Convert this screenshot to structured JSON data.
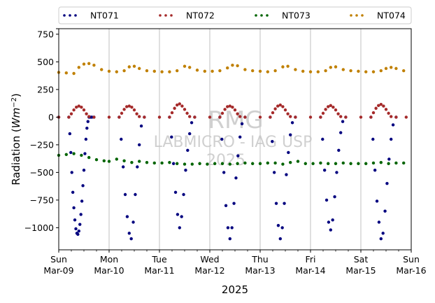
{
  "chart_data": {
    "type": "scatter",
    "title": "",
    "xlabel": "2025",
    "ylabel_main": "Radiation (",
    "ylabel_unit": "Wm",
    "ylabel_exp": "−2",
    "ylabel_close": ")",
    "ylim": [
      -1200,
      800
    ],
    "xlim": [
      0,
      7
    ],
    "grid": "vertical",
    "legend_position": "top",
    "yticks": [
      800,
      750,
      500,
      250,
      0,
      -250,
      -500,
      -750,
      -1000
    ],
    "ytick_labels": [
      "",
      "750",
      "500",
      "250",
      "0",
      "−250",
      "−500",
      "−750",
      "−1000"
    ],
    "xticks": [
      {
        "x": 0,
        "day": "Sun",
        "date": "Mar-09"
      },
      {
        "x": 1,
        "day": "Mon",
        "date": "Mar-10"
      },
      {
        "x": 2,
        "day": "Tue",
        "date": "Mar-11"
      },
      {
        "x": 3,
        "day": "Wed",
        "date": "Mar-12"
      },
      {
        "x": 4,
        "day": "Thu",
        "date": "Mar-13"
      },
      {
        "x": 5,
        "day": "Fri",
        "date": "Mar-14"
      },
      {
        "x": 6,
        "day": "Sat",
        "date": "Mar-15"
      },
      {
        "x": 7,
        "day": "Sun",
        "date": "Mar-16"
      }
    ],
    "watermark": [
      "RMG",
      "LABMICRO - IAG USP",
      "2025"
    ],
    "series": [
      {
        "name": "NT071",
        "color": "#00007f",
        "x": [
          0.0,
          0.2,
          0.22,
          0.24,
          0.26,
          0.28,
          0.3,
          0.32,
          0.34,
          0.36,
          0.38,
          0.4,
          0.42,
          0.44,
          0.46,
          0.48,
          0.5,
          0.52,
          0.54,
          0.56,
          0.58,
          0.6,
          0.62,
          0.64,
          0.66,
          0.7,
          1.2,
          1.24,
          1.28,
          1.32,
          1.36,
          1.4,
          1.44,
          1.48,
          1.52,
          1.56,
          1.6,
          1.64,
          1.7,
          2.2,
          2.24,
          2.28,
          2.32,
          2.36,
          2.4,
          2.44,
          2.48,
          2.52,
          2.56,
          2.6,
          2.64,
          2.7,
          3.2,
          3.24,
          3.28,
          3.32,
          3.36,
          3.4,
          3.44,
          3.48,
          3.52,
          3.56,
          3.6,
          3.64,
          3.7,
          4.2,
          4.24,
          4.28,
          4.32,
          4.36,
          4.4,
          4.44,
          4.48,
          4.52,
          4.56,
          4.6,
          4.64,
          4.7,
          5.2,
          5.24,
          5.28,
          5.32,
          5.36,
          5.4,
          5.44,
          5.48,
          5.52,
          5.56,
          5.6,
          5.64,
          5.7,
          6.2,
          6.24,
          6.28,
          6.32,
          6.36,
          6.4,
          6.44,
          6.48,
          6.52,
          6.56,
          6.6,
          6.64,
          6.7
        ],
        "y": [
          0,
          0,
          -150,
          -320,
          -500,
          -680,
          -820,
          -930,
          -1010,
          -1050,
          -1060,
          -1030,
          -970,
          -880,
          -760,
          -620,
          -480,
          -330,
          -200,
          -100,
          -40,
          0,
          0,
          0,
          0,
          0,
          0,
          -200,
          -450,
          -700,
          -900,
          -1050,
          -1100,
          -950,
          -700,
          -450,
          -250,
          -80,
          0,
          0,
          -180,
          -420,
          -680,
          -880,
          -1000,
          -900,
          -700,
          -480,
          -300,
          -150,
          -50,
          0,
          0,
          -200,
          -500,
          -800,
          -1000,
          -1100,
          -1000,
          -780,
          -550,
          -350,
          -180,
          -60,
          0,
          0,
          -220,
          -500,
          -780,
          -980,
          -1100,
          -1000,
          -780,
          -520,
          -320,
          -160,
          -50,
          0,
          0,
          -200,
          -480,
          -750,
          -950,
          -1020,
          -930,
          -720,
          -500,
          -300,
          -140,
          -40,
          0,
          0,
          -200,
          -480,
          -760,
          -950,
          -1100,
          -1050,
          -850,
          -600,
          -380,
          -200,
          -70,
          0
        ]
      },
      {
        "name": "NT072",
        "color": "#a52a2a",
        "x": [
          0.0,
          0.2,
          0.25,
          0.3,
          0.35,
          0.4,
          0.45,
          0.5,
          0.55,
          0.6,
          0.7,
          1.0,
          1.2,
          1.25,
          1.3,
          1.35,
          1.4,
          1.45,
          1.5,
          1.55,
          1.6,
          1.7,
          2.0,
          2.2,
          2.25,
          2.3,
          2.35,
          2.4,
          2.45,
          2.5,
          2.55,
          2.6,
          2.7,
          3.0,
          3.2,
          3.25,
          3.3,
          3.35,
          3.4,
          3.45,
          3.5,
          3.55,
          3.6,
          3.7,
          4.0,
          4.2,
          4.25,
          4.3,
          4.35,
          4.4,
          4.45,
          4.5,
          4.55,
          4.6,
          4.7,
          5.0,
          5.2,
          5.25,
          5.3,
          5.35,
          5.4,
          5.45,
          5.5,
          5.55,
          5.6,
          5.7,
          6.0,
          6.2,
          6.25,
          6.3,
          6.35,
          6.4,
          6.45,
          6.5,
          6.55,
          6.6,
          6.7,
          6.9
        ],
        "y": [
          0,
          0,
          30,
          65,
          90,
          100,
          90,
          65,
          30,
          5,
          0,
          0,
          0,
          35,
          70,
          95,
          100,
          90,
          65,
          30,
          5,
          0,
          0,
          0,
          40,
          80,
          110,
          120,
          100,
          70,
          35,
          5,
          0,
          0,
          0,
          35,
          70,
          95,
          100,
          90,
          65,
          30,
          5,
          0,
          0,
          0,
          40,
          75,
          100,
          110,
          95,
          65,
          30,
          5,
          0,
          0,
          0,
          35,
          70,
          95,
          105,
          90,
          65,
          30,
          5,
          0,
          0,
          0,
          40,
          80,
          105,
          115,
          100,
          70,
          35,
          5,
          0,
          0
        ]
      },
      {
        "name": "NT073",
        "color": "#006400",
        "x": [
          0.0,
          0.15,
          0.3,
          0.45,
          0.6,
          0.75,
          0.9,
          1.0,
          1.15,
          1.3,
          1.45,
          1.6,
          1.75,
          1.9,
          2.05,
          2.2,
          2.35,
          2.5,
          2.65,
          2.8,
          2.95,
          3.1,
          3.25,
          3.4,
          3.55,
          3.7,
          3.85,
          4.0,
          4.15,
          4.3,
          4.45,
          4.6,
          4.75,
          4.9,
          5.05,
          5.2,
          5.35,
          5.5,
          5.65,
          5.8,
          5.95,
          6.1,
          6.25,
          6.4,
          6.55,
          6.7,
          6.85
        ],
        "y": [
          -345,
          -338,
          -330,
          -345,
          -365,
          -385,
          -395,
          -400,
          -380,
          -395,
          -410,
          -400,
          -410,
          -415,
          -415,
          -410,
          -420,
          -425,
          -425,
          -420,
          -425,
          -420,
          -420,
          -425,
          -420,
          -415,
          -420,
          -420,
          -415,
          -415,
          -425,
          -410,
          -400,
          -420,
          -420,
          -415,
          -420,
          -420,
          -415,
          -420,
          -420,
          -420,
          -415,
          -410,
          -420,
          -415,
          -415
        ]
      },
      {
        "name": "NT074",
        "color": "#c08000",
        "x": [
          0.0,
          0.15,
          0.3,
          0.4,
          0.5,
          0.6,
          0.7,
          0.85,
          1.0,
          1.15,
          1.3,
          1.4,
          1.5,
          1.6,
          1.75,
          1.9,
          2.05,
          2.2,
          2.35,
          2.5,
          2.6,
          2.75,
          2.9,
          3.05,
          3.2,
          3.35,
          3.45,
          3.55,
          3.7,
          3.85,
          4.0,
          4.15,
          4.3,
          4.45,
          4.55,
          4.7,
          4.85,
          5.0,
          5.15,
          5.3,
          5.4,
          5.5,
          5.65,
          5.8,
          5.95,
          6.1,
          6.25,
          6.4,
          6.5,
          6.6,
          6.7,
          6.85
        ],
        "y": [
          405,
          400,
          395,
          450,
          480,
          485,
          470,
          430,
          415,
          410,
          420,
          455,
          460,
          440,
          420,
          415,
          410,
          410,
          420,
          460,
          450,
          425,
          415,
          415,
          420,
          445,
          470,
          465,
          430,
          420,
          415,
          410,
          420,
          455,
          460,
          430,
          415,
          410,
          410,
          420,
          450,
          455,
          430,
          420,
          415,
          410,
          410,
          420,
          440,
          450,
          440,
          420
        ]
      }
    ]
  }
}
